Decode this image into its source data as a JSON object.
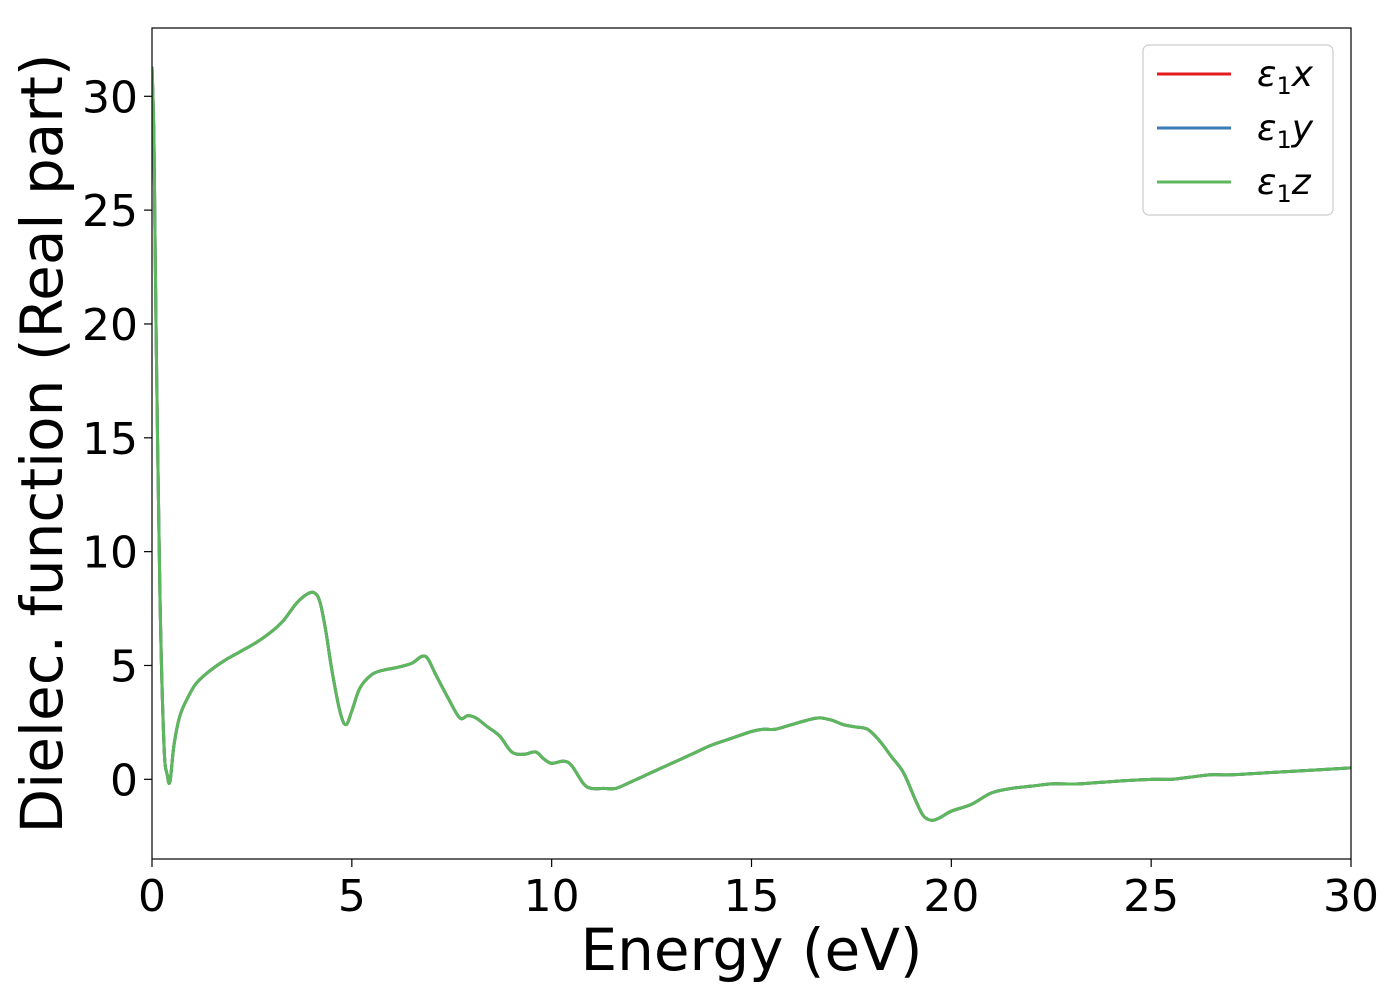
{
  "chart_data": {
    "type": "line",
    "title": "",
    "xlabel": "Energy (eV)",
    "ylabel": "Dielec. function (Real part)",
    "xlim": [
      0,
      30
    ],
    "ylim": [
      -3.5,
      33
    ],
    "xticks": [
      0,
      5,
      10,
      15,
      20,
      25,
      30
    ],
    "yticks": [
      0,
      5,
      10,
      15,
      20,
      25,
      30
    ],
    "xtick_labels": [
      "0",
      "5",
      "10",
      "15",
      "20",
      "25",
      "30"
    ],
    "ytick_labels": [
      "0",
      "5",
      "10",
      "15",
      "20",
      "25",
      "30"
    ],
    "grid": false,
    "legend_position": "top-right",
    "series": [
      {
        "name": "ε1x",
        "base": "ε",
        "sub": "1",
        "suffix": "x",
        "color": "#e41a1c",
        "x": [
          0.0,
          0.05,
          0.1,
          0.2,
          0.3,
          0.38,
          0.45,
          0.55,
          0.7,
          0.9,
          1.1,
          1.4,
          1.8,
          2.2,
          2.6,
          3.0,
          3.3,
          3.6,
          3.85,
          4.05,
          4.2,
          4.35,
          4.5,
          4.7,
          4.85,
          5.0,
          5.2,
          5.5,
          5.8,
          6.1,
          6.5,
          6.75,
          6.9,
          7.1,
          7.4,
          7.7,
          7.9,
          8.1,
          8.4,
          8.7,
          9.0,
          9.3,
          9.6,
          9.8,
          10.0,
          10.3,
          10.5,
          10.8,
          11.0,
          11.3,
          11.6,
          12.0,
          12.5,
          13.0,
          13.5,
          14.0,
          14.5,
          15.0,
          15.3,
          15.6,
          16.0,
          16.4,
          16.7,
          17.0,
          17.3,
          17.6,
          17.9,
          18.2,
          18.5,
          18.8,
          19.1,
          19.3,
          19.5,
          19.7,
          20.0,
          20.5,
          21.0,
          21.5,
          22.0,
          22.5,
          22.8,
          23.2,
          24.0,
          25.0,
          25.5,
          26.0,
          26.5,
          27.0,
          28.0,
          29.0,
          30.0
        ],
        "y": [
          31.3,
          28.0,
          20.0,
          8.0,
          1.5,
          0.2,
          -0.1,
          1.5,
          2.8,
          3.6,
          4.2,
          4.7,
          5.2,
          5.6,
          6.0,
          6.5,
          7.0,
          7.7,
          8.1,
          8.2,
          7.8,
          6.5,
          4.8,
          3.0,
          2.4,
          3.0,
          4.0,
          4.6,
          4.8,
          4.9,
          5.1,
          5.4,
          5.3,
          4.6,
          3.6,
          2.7,
          2.8,
          2.7,
          2.3,
          1.9,
          1.2,
          1.1,
          1.2,
          0.9,
          0.7,
          0.8,
          0.6,
          -0.2,
          -0.4,
          -0.4,
          -0.4,
          -0.1,
          0.3,
          0.7,
          1.1,
          1.5,
          1.8,
          2.1,
          2.2,
          2.2,
          2.4,
          2.6,
          2.7,
          2.6,
          2.4,
          2.3,
          2.2,
          1.7,
          1.0,
          0.3,
          -0.9,
          -1.6,
          -1.8,
          -1.7,
          -1.4,
          -1.1,
          -0.6,
          -0.4,
          -0.3,
          -0.2,
          -0.2,
          -0.2,
          -0.1,
          0.0,
          0.0,
          0.1,
          0.2,
          0.2,
          0.3,
          0.4,
          0.5
        ]
      },
      {
        "name": "ε1y",
        "base": "ε",
        "sub": "1",
        "suffix": "y",
        "color": "#377eb8",
        "x": [
          0.0,
          0.05,
          0.1,
          0.2,
          0.3,
          0.38,
          0.45,
          0.55,
          0.7,
          0.9,
          1.1,
          1.4,
          1.8,
          2.2,
          2.6,
          3.0,
          3.3,
          3.6,
          3.85,
          4.05,
          4.2,
          4.35,
          4.5,
          4.7,
          4.85,
          5.0,
          5.2,
          5.5,
          5.8,
          6.1,
          6.5,
          6.75,
          6.9,
          7.1,
          7.4,
          7.7,
          7.9,
          8.1,
          8.4,
          8.7,
          9.0,
          9.3,
          9.6,
          9.8,
          10.0,
          10.3,
          10.5,
          10.8,
          11.0,
          11.3,
          11.6,
          12.0,
          12.5,
          13.0,
          13.5,
          14.0,
          14.5,
          15.0,
          15.3,
          15.6,
          16.0,
          16.4,
          16.7,
          17.0,
          17.3,
          17.6,
          17.9,
          18.2,
          18.5,
          18.8,
          19.1,
          19.3,
          19.5,
          19.7,
          20.0,
          20.5,
          21.0,
          21.5,
          22.0,
          22.5,
          22.8,
          23.2,
          24.0,
          25.0,
          25.5,
          26.0,
          26.5,
          27.0,
          28.0,
          29.0,
          30.0
        ],
        "y": [
          31.3,
          28.0,
          20.0,
          8.0,
          1.5,
          0.2,
          -0.1,
          1.5,
          2.8,
          3.6,
          4.2,
          4.7,
          5.2,
          5.6,
          6.0,
          6.5,
          7.0,
          7.7,
          8.1,
          8.2,
          7.8,
          6.5,
          4.8,
          3.0,
          2.4,
          3.0,
          4.0,
          4.6,
          4.8,
          4.9,
          5.1,
          5.4,
          5.3,
          4.6,
          3.6,
          2.7,
          2.8,
          2.7,
          2.3,
          1.9,
          1.2,
          1.1,
          1.2,
          0.9,
          0.7,
          0.8,
          0.6,
          -0.2,
          -0.4,
          -0.4,
          -0.4,
          -0.1,
          0.3,
          0.7,
          1.1,
          1.5,
          1.8,
          2.1,
          2.2,
          2.2,
          2.4,
          2.6,
          2.7,
          2.6,
          2.4,
          2.3,
          2.2,
          1.7,
          1.0,
          0.3,
          -0.9,
          -1.6,
          -1.8,
          -1.7,
          -1.4,
          -1.1,
          -0.6,
          -0.4,
          -0.3,
          -0.2,
          -0.2,
          -0.2,
          -0.1,
          0.0,
          0.0,
          0.1,
          0.2,
          0.2,
          0.3,
          0.4,
          0.5
        ]
      },
      {
        "name": "ε1z",
        "base": "ε",
        "sub": "1",
        "suffix": "z",
        "color": "#5cb85c",
        "x": [
          0.0,
          0.05,
          0.1,
          0.2,
          0.3,
          0.38,
          0.45,
          0.55,
          0.7,
          0.9,
          1.1,
          1.4,
          1.8,
          2.2,
          2.6,
          3.0,
          3.3,
          3.6,
          3.85,
          4.05,
          4.2,
          4.35,
          4.5,
          4.7,
          4.85,
          5.0,
          5.2,
          5.5,
          5.8,
          6.1,
          6.5,
          6.75,
          6.9,
          7.1,
          7.4,
          7.7,
          7.9,
          8.1,
          8.4,
          8.7,
          9.0,
          9.3,
          9.6,
          9.8,
          10.0,
          10.3,
          10.5,
          10.8,
          11.0,
          11.3,
          11.6,
          12.0,
          12.5,
          13.0,
          13.5,
          14.0,
          14.5,
          15.0,
          15.3,
          15.6,
          16.0,
          16.4,
          16.7,
          17.0,
          17.3,
          17.6,
          17.9,
          18.2,
          18.5,
          18.8,
          19.1,
          19.3,
          19.5,
          19.7,
          20.0,
          20.5,
          21.0,
          21.5,
          22.0,
          22.5,
          22.8,
          23.2,
          24.0,
          25.0,
          25.5,
          26.0,
          26.5,
          27.0,
          28.0,
          29.0,
          30.0
        ],
        "y": [
          31.3,
          28.0,
          20.0,
          8.0,
          1.5,
          0.2,
          -0.1,
          1.5,
          2.8,
          3.6,
          4.2,
          4.7,
          5.2,
          5.6,
          6.0,
          6.5,
          7.0,
          7.7,
          8.1,
          8.2,
          7.8,
          6.5,
          4.8,
          3.0,
          2.4,
          3.0,
          4.0,
          4.6,
          4.8,
          4.9,
          5.1,
          5.4,
          5.3,
          4.6,
          3.6,
          2.7,
          2.8,
          2.7,
          2.3,
          1.9,
          1.2,
          1.1,
          1.2,
          0.9,
          0.7,
          0.8,
          0.6,
          -0.2,
          -0.4,
          -0.4,
          -0.4,
          -0.1,
          0.3,
          0.7,
          1.1,
          1.5,
          1.8,
          2.1,
          2.2,
          2.2,
          2.4,
          2.6,
          2.7,
          2.6,
          2.4,
          2.3,
          2.2,
          1.7,
          1.0,
          0.3,
          -0.9,
          -1.6,
          -1.8,
          -1.7,
          -1.4,
          -1.1,
          -0.6,
          -0.4,
          -0.3,
          -0.2,
          -0.2,
          -0.2,
          -0.1,
          0.0,
          0.0,
          0.1,
          0.2,
          0.2,
          0.3,
          0.4,
          0.5
        ]
      }
    ]
  }
}
